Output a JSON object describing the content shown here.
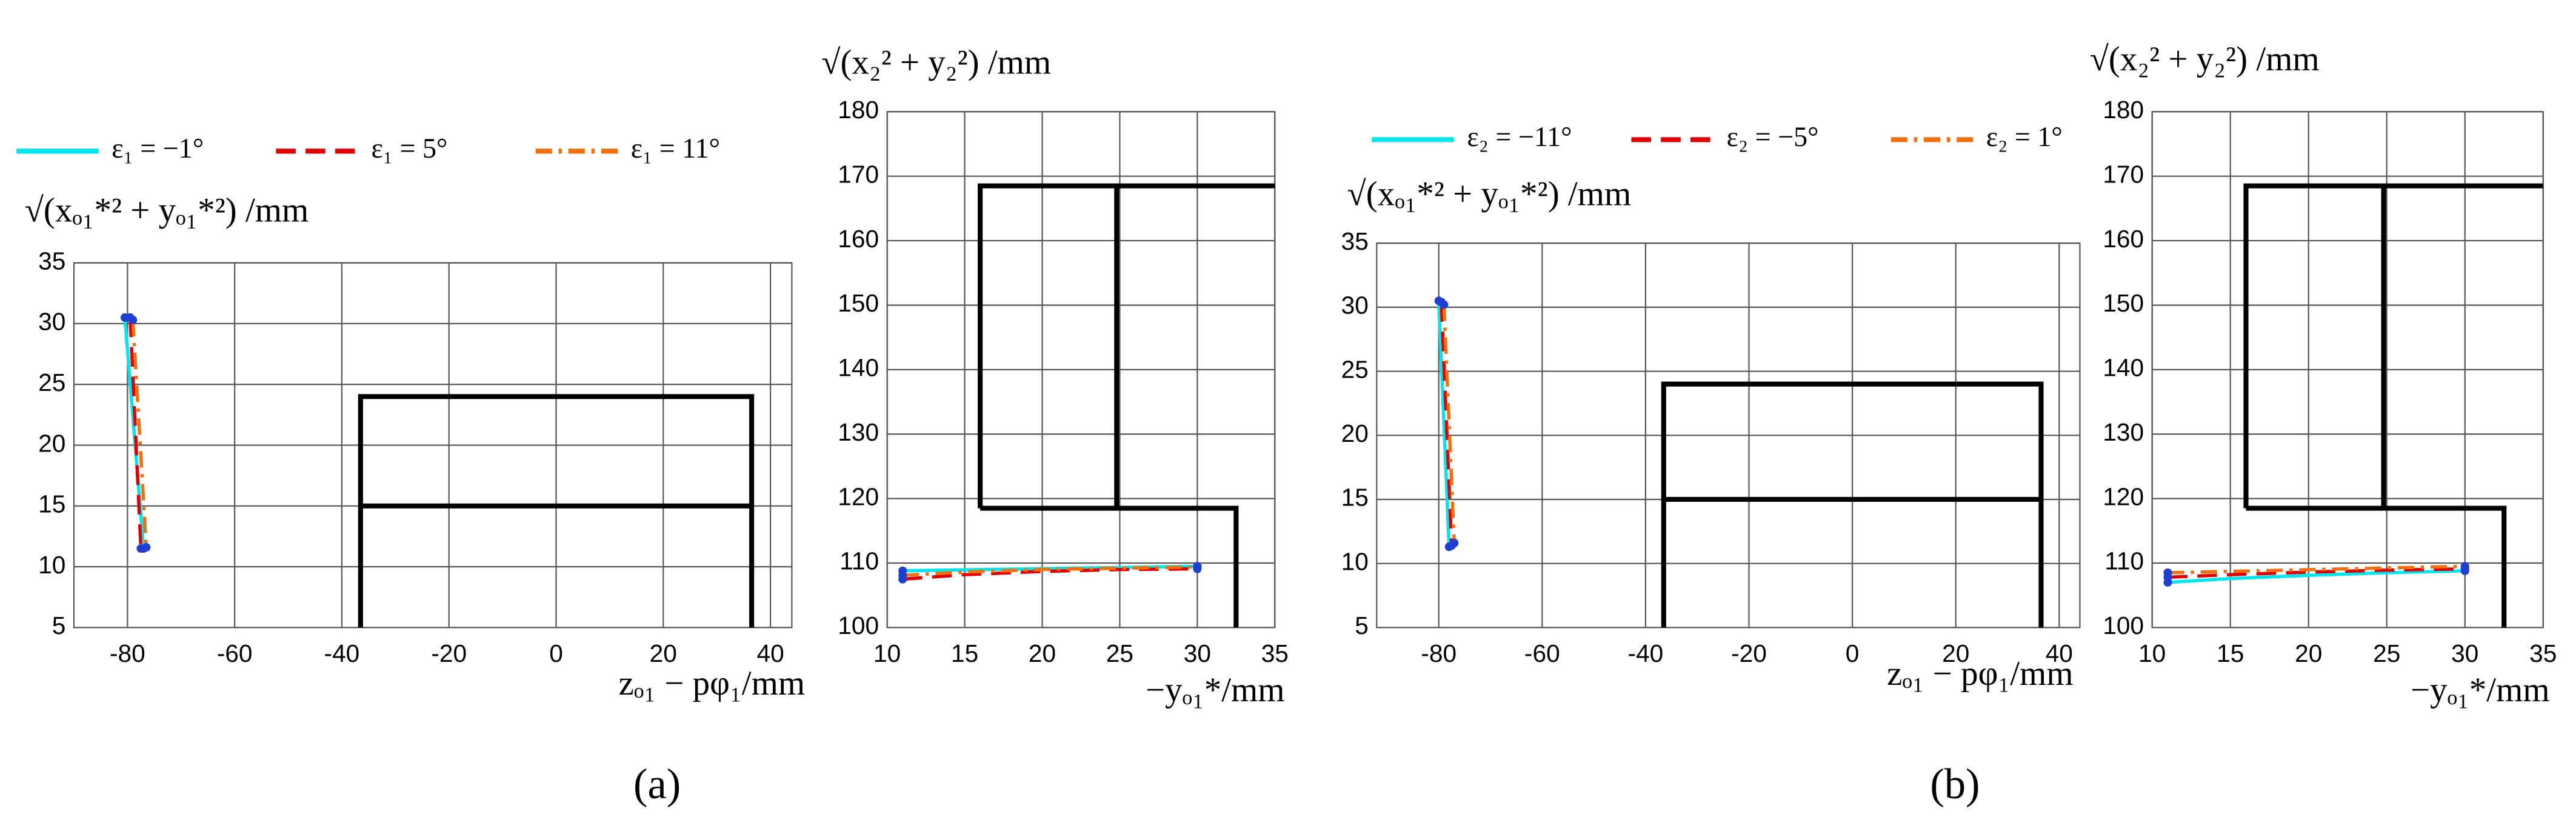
{
  "chart_data": [
    {
      "type": "line",
      "xlabel": "zₒ₁ − pφ₁/mm",
      "ylabel": "√(xₒ₁*² + yₒ₁*²) /mm",
      "xlim": [
        -90,
        44
      ],
      "ylim": [
        5,
        35
      ],
      "xticks": [
        -80,
        -60,
        -40,
        -20,
        0,
        20,
        40
      ],
      "yticks": [
        5,
        10,
        15,
        20,
        25,
        30,
        35
      ],
      "grid": true,
      "marker_color": "#1f3fd1",
      "series": [
        {
          "name": "ε₁ = −1°",
          "color": "#00e5ee",
          "dash": "solid",
          "x": [
            -80.5,
            -77
          ],
          "values": [
            30.5,
            11.5
          ]
        },
        {
          "name": "ε₁ = 5°",
          "color": "#e00000",
          "dash": "dashed",
          "x": [
            -79.5,
            -77.5
          ],
          "values": [
            30.5,
            11.5
          ]
        },
        {
          "name": "ε₁ = 11°",
          "color": "#f07010",
          "dash": "dashdot",
          "x": [
            -79,
            -76.5
          ],
          "values": [
            30.3,
            11.6
          ]
        }
      ],
      "outlines": [
        {
          "x": [
            -36.5,
            -36.5,
            36.5,
            36.5
          ],
          "y": [
            5,
            24,
            24,
            5
          ]
        },
        {
          "x": [
            -36.5,
            36.5
          ],
          "y": [
            15,
            15
          ]
        }
      ]
    },
    {
      "type": "line",
      "xlabel": "−yₒ₁*/mm",
      "ylabel": "√(x₂² + y₂²) /mm",
      "xlim": [
        10,
        35
      ],
      "ylim": [
        100,
        180
      ],
      "xticks": [
        10,
        15,
        20,
        25,
        30,
        35
      ],
      "yticks": [
        100,
        110,
        120,
        130,
        140,
        150,
        160,
        170,
        180
      ],
      "grid": true,
      "marker_color": "#1f3fd1",
      "series": [
        {
          "color": "#00e5ee",
          "dash": "solid",
          "x": [
            11,
            30
          ],
          "values": [
            108.8,
            109.5
          ]
        },
        {
          "color": "#e00000",
          "dash": "dashed",
          "x": [
            11,
            15,
            20,
            25,
            30
          ],
          "values": [
            107.5,
            108.2,
            108.7,
            109,
            109.1
          ]
        },
        {
          "color": "#f07010",
          "dash": "dashdot",
          "x": [
            11,
            15,
            20,
            25,
            30
          ],
          "values": [
            108.1,
            108.6,
            109,
            109.2,
            109.4
          ]
        }
      ],
      "outlines": [
        {
          "x": [
            16,
            16,
            35
          ],
          "y": [
            118.5,
            168.5,
            168.5
          ]
        },
        {
          "x": [
            24.8,
            24.8
          ],
          "y": [
            168.5,
            118.5
          ]
        },
        {
          "x": [
            16,
            32.5,
            32.5
          ],
          "y": [
            118.5,
            118.5,
            100
          ]
        }
      ]
    },
    {
      "type": "line",
      "xlabel": "zₒ₁ − pφ₁/mm",
      "ylabel": "√(xₒ₁*² + yₒ₁*²) /mm",
      "xlim": [
        -92,
        44
      ],
      "ylim": [
        5,
        35
      ],
      "xticks": [
        -80,
        -60,
        -40,
        -20,
        0,
        20,
        40
      ],
      "yticks": [
        5,
        10,
        15,
        20,
        25,
        30,
        35
      ],
      "grid": true,
      "marker_color": "#1f3fd1",
      "series": [
        {
          "name": "ε₂ = −11°",
          "color": "#00e5ee",
          "dash": "solid",
          "x": [
            -80,
            -78
          ],
          "values": [
            30.5,
            11.3
          ]
        },
        {
          "name": "ε₂ = −5°",
          "color": "#e00000",
          "dash": "dashed",
          "x": [
            -79.5,
            -77.5
          ],
          "values": [
            30.4,
            11.4
          ]
        },
        {
          "name": "ε₂ = 1°",
          "color": "#f07010",
          "dash": "dashdot",
          "x": [
            -79,
            -77
          ],
          "values": [
            30.2,
            11.6
          ]
        }
      ],
      "outlines": [
        {
          "x": [
            -36.5,
            -36.5,
            36.5,
            36.5
          ],
          "y": [
            5,
            24,
            24,
            5
          ]
        },
        {
          "x": [
            -36.5,
            36.5
          ],
          "y": [
            15,
            15
          ]
        }
      ]
    },
    {
      "type": "line",
      "xlabel": "−yₒ₁*/mm",
      "ylabel": "√(x₂² + y₂²) /mm",
      "xlim": [
        10,
        35
      ],
      "ylim": [
        100,
        180
      ],
      "xticks": [
        10,
        15,
        20,
        25,
        30,
        35
      ],
      "yticks": [
        100,
        110,
        120,
        130,
        140,
        150,
        160,
        170,
        180
      ],
      "grid": true,
      "marker_color": "#1f3fd1",
      "series": [
        {
          "color": "#00e5ee",
          "dash": "solid",
          "x": [
            11,
            15,
            20,
            25,
            30
          ],
          "values": [
            107,
            107.6,
            108.1,
            108.5,
            108.8
          ]
        },
        {
          "color": "#e00000",
          "dash": "dashed",
          "x": [
            11,
            15,
            20,
            25,
            30
          ],
          "values": [
            107.8,
            108.2,
            108.6,
            108.9,
            109.1
          ]
        },
        {
          "color": "#f07010",
          "dash": "dashdot",
          "x": [
            11,
            30
          ],
          "values": [
            108.5,
            109.5
          ]
        }
      ],
      "outlines": [
        {
          "x": [
            16,
            16,
            35
          ],
          "y": [
            118.5,
            168.5,
            168.5
          ]
        },
        {
          "x": [
            24.8,
            24.8
          ],
          "y": [
            168.5,
            118.5
          ]
        },
        {
          "x": [
            16,
            32.5,
            32.5
          ],
          "y": [
            118.5,
            118.5,
            100
          ]
        }
      ]
    }
  ],
  "panel_labels": [
    "(a)",
    "(b)"
  ]
}
